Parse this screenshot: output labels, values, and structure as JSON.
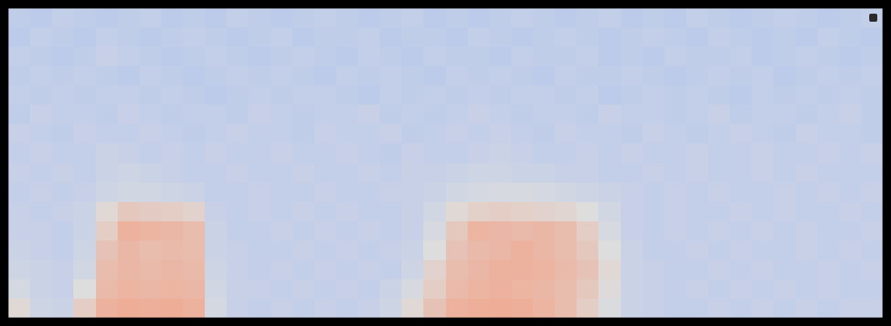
{
  "chart_data": {
    "type": "heatmap",
    "color": "coolwarm",
    "tick_labels": false,
    "zlim": [
      0,
      100
    ],
    "cells": [
      [
        41,
        40,
        42,
        41,
        40,
        41,
        42,
        40,
        41,
        40,
        42,
        41,
        40,
        41,
        42,
        41,
        40,
        41,
        42,
        40,
        41,
        40,
        41,
        42,
        41,
        40,
        41,
        42,
        40,
        41,
        40,
        42,
        41,
        40,
        41,
        42,
        41,
        40,
        41,
        42
      ],
      [
        40,
        42,
        41,
        40,
        42,
        41,
        40,
        41,
        42,
        41,
        40,
        41,
        42,
        40,
        41,
        41,
        42,
        40,
        41,
        41,
        40,
        42,
        41,
        40,
        41,
        42,
        41,
        40,
        41,
        42,
        41,
        40,
        42,
        41,
        40,
        41,
        40,
        42,
        41,
        40
      ],
      [
        42,
        41,
        40,
        41,
        43,
        42,
        41,
        40,
        41,
        42,
        41,
        40,
        41,
        42,
        41,
        40,
        42,
        41,
        40,
        42,
        41,
        41,
        40,
        42,
        41,
        41,
        42,
        40,
        41,
        40,
        42,
        41,
        41,
        42,
        40,
        41,
        42,
        41,
        40,
        41
      ],
      [
        41,
        42,
        41,
        42,
        41,
        40,
        42,
        41,
        40,
        41,
        42,
        41,
        42,
        41,
        40,
        42,
        41,
        42,
        41,
        40,
        42,
        41,
        42,
        41,
        40,
        42,
        41,
        41,
        42,
        41,
        40,
        41,
        42,
        41,
        42,
        40,
        41,
        42,
        41,
        42
      ],
      [
        42,
        41,
        42,
        41,
        42,
        42,
        41,
        42,
        41,
        40,
        41,
        42,
        41,
        42,
        42,
        41,
        40,
        42,
        41,
        42,
        41,
        42,
        41,
        42,
        42,
        41,
        42,
        40,
        41,
        42,
        41,
        42,
        41,
        40,
        42,
        41,
        42,
        41,
        42,
        41
      ],
      [
        41,
        43,
        42,
        42,
        41,
        43,
        42,
        41,
        42,
        42,
        41,
        43,
        42,
        41,
        42,
        42,
        43,
        41,
        42,
        41,
        42,
        43,
        42,
        41,
        42,
        42,
        41,
        43,
        42,
        42,
        41,
        42,
        43,
        41,
        42,
        42,
        41,
        42,
        43,
        41
      ],
      [
        43,
        42,
        41,
        43,
        42,
        42,
        43,
        42,
        41,
        42,
        43,
        42,
        42,
        41,
        43,
        42,
        42,
        43,
        41,
        42,
        43,
        42,
        43,
        42,
        41,
        43,
        42,
        42,
        41,
        43,
        42,
        41,
        42,
        43,
        42,
        41,
        43,
        42,
        42,
        41
      ],
      [
        42,
        43,
        42,
        42,
        44,
        43,
        42,
        43,
        42,
        43,
        42,
        42,
        43,
        42,
        42,
        43,
        42,
        41,
        43,
        42,
        42,
        43,
        44,
        43,
        42,
        42,
        43,
        42,
        43,
        42,
        42,
        43,
        42,
        42,
        43,
        42,
        42,
        43,
        42,
        43
      ],
      [
        43,
        42,
        43,
        42,
        44,
        45,
        44,
        43,
        42,
        42,
        43,
        42,
        42,
        43,
        42,
        42,
        43,
        42,
        43,
        43,
        44,
        45,
        45,
        44,
        44,
        43,
        43,
        42,
        42,
        43,
        42,
        43,
        42,
        42,
        43,
        42,
        43,
        42,
        42,
        42
      ],
      [
        42,
        43,
        42,
        43,
        45,
        46,
        46,
        45,
        44,
        42,
        42,
        43,
        42,
        42,
        43,
        42,
        42,
        43,
        43,
        44,
        46,
        47,
        48,
        48,
        47,
        46,
        45,
        44,
        43,
        42,
        43,
        42,
        43,
        42,
        42,
        43,
        42,
        43,
        42,
        43
      ],
      [
        43,
        42,
        43,
        44,
        52,
        58,
        57,
        56,
        54,
        43,
        42,
        43,
        42,
        43,
        42,
        43,
        42,
        42,
        43,
        46,
        52,
        55,
        56,
        55,
        54,
        53,
        50,
        46,
        43,
        42,
        43,
        42,
        42,
        43,
        42,
        43,
        42,
        42,
        43,
        42
      ],
      [
        43,
        43,
        42,
        44,
        56,
        66,
        65,
        64,
        62,
        44,
        42,
        42,
        43,
        42,
        43,
        42,
        43,
        42,
        43,
        48,
        58,
        65,
        64,
        63,
        64,
        62,
        56,
        48,
        43,
        42,
        43,
        42,
        43,
        42,
        43,
        42,
        43,
        42,
        42,
        43
      ],
      [
        44,
        43,
        42,
        45,
        60,
        64,
        62,
        63,
        62,
        44,
        43,
        42,
        42,
        43,
        42,
        43,
        42,
        43,
        44,
        50,
        60,
        63,
        64,
        66,
        64,
        62,
        58,
        50,
        44,
        42,
        42,
        43,
        42,
        43,
        42,
        42,
        43,
        42,
        43,
        42
      ],
      [
        45,
        44,
        43,
        46,
        62,
        64,
        63,
        64,
        63,
        45,
        43,
        42,
        43,
        42,
        43,
        42,
        43,
        42,
        45,
        54,
        62,
        64,
        66,
        66,
        65,
        63,
        60,
        52,
        44,
        43,
        42,
        42,
        43,
        42,
        43,
        42,
        42,
        43,
        42,
        43
      ],
      [
        47,
        44,
        43,
        50,
        63,
        65,
        64,
        65,
        64,
        46,
        43,
        43,
        42,
        43,
        42,
        43,
        42,
        44,
        48,
        56,
        63,
        65,
        66,
        65,
        64,
        62,
        58,
        51,
        44,
        43,
        42,
        43,
        42,
        43,
        42,
        43,
        42,
        43,
        42,
        42
      ],
      [
        52,
        45,
        44,
        56,
        66,
        68,
        67,
        68,
        66,
        47,
        43,
        42,
        43,
        42,
        43,
        42,
        43,
        45,
        52,
        60,
        66,
        67,
        68,
        67,
        65,
        62,
        56,
        49,
        44,
        43,
        42,
        42,
        43,
        42,
        43,
        42,
        43,
        42,
        43,
        43
      ]
    ]
  }
}
